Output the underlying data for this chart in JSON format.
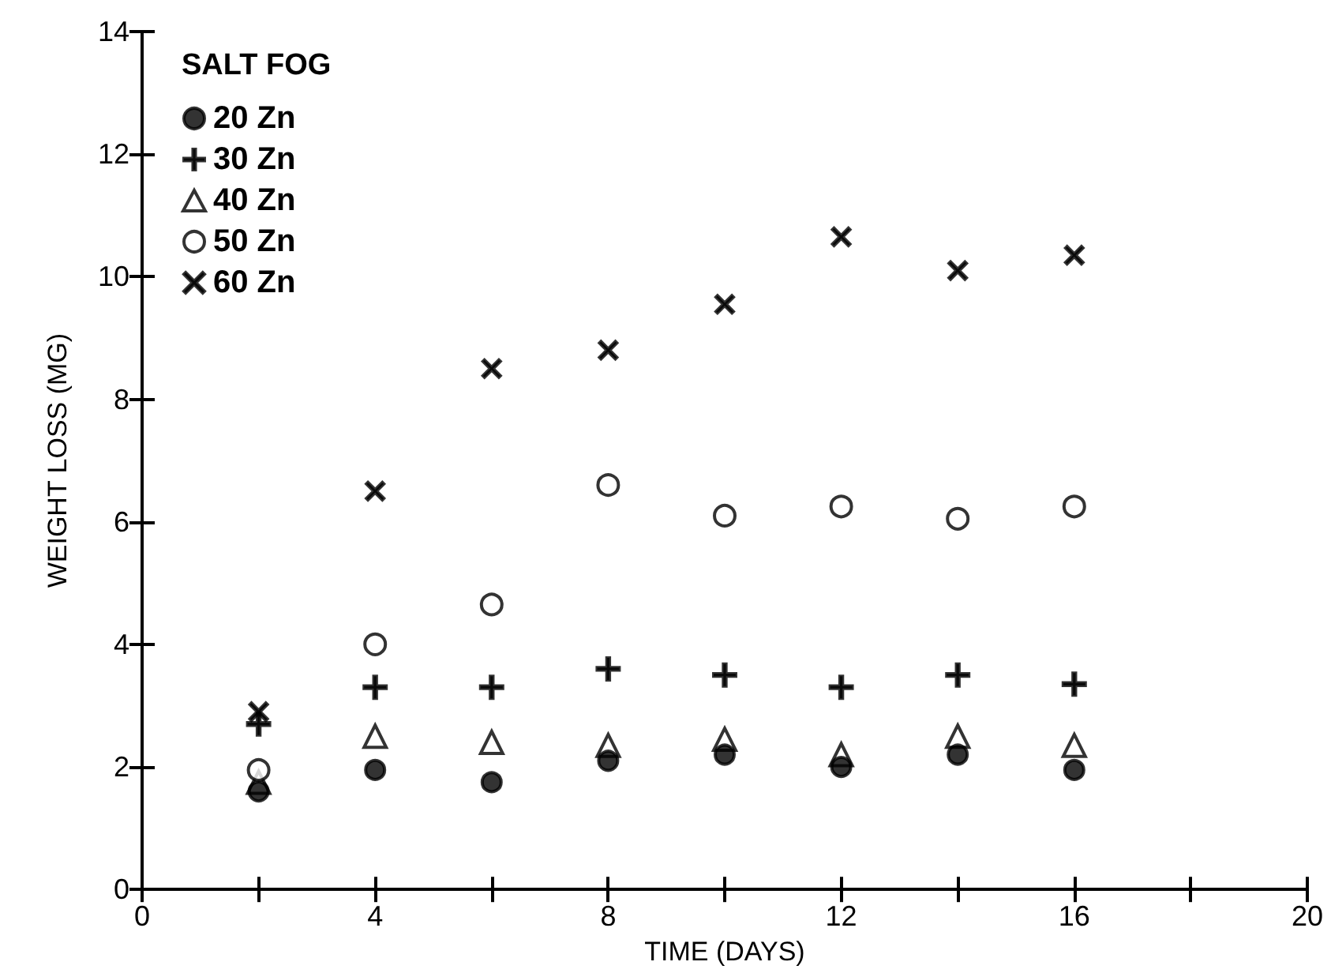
{
  "chart_data": {
    "type": "scatter",
    "xlabel": "TIME (DAYS)",
    "ylabel": "WEIGHT LOSS (MG)",
    "legend_title": "SALT FOG",
    "legend": "top left",
    "grid": false,
    "x": [
      2,
      4,
      6,
      8,
      10,
      12,
      14,
      16
    ],
    "xlim": [
      0,
      20
    ],
    "xticks": [
      0,
      {
        "value": 2,
        "label": null
      },
      4,
      {
        "value": 6,
        "label": null
      },
      8,
      {
        "value": 10,
        "label": null
      },
      12,
      {
        "value": 14,
        "label": null
      },
      16,
      {
        "value": 18,
        "label": null
      },
      20
    ],
    "ylim": [
      0,
      14
    ],
    "yticks": [
      0,
      2,
      4,
      6,
      8,
      10,
      12,
      14
    ],
    "series": [
      {
        "name": "20 Zn",
        "color": "#000000",
        "marker": "circle",
        "values": [
          1.6,
          1.95,
          1.75,
          2.1,
          2.2,
          2.0,
          2.2,
          1.95
        ]
      },
      {
        "name": "30 Zn",
        "color": "#000000",
        "marker": "plus",
        "values": [
          2.7,
          3.3,
          3.3,
          3.6,
          3.5,
          3.3,
          3.5,
          3.35
        ]
      },
      {
        "name": "40 Zn",
        "color": "#000000",
        "marker": "triangle",
        "values": [
          1.75,
          2.5,
          2.4,
          2.35,
          2.45,
          2.2,
          2.5,
          2.35
        ]
      },
      {
        "name": "50 Zn",
        "color": "#000000",
        "marker": "circle",
        "values": [
          1.95,
          4.0,
          4.65,
          6.6,
          6.1,
          6.25,
          6.05,
          6.25
        ]
      },
      {
        "name": "60 Zn",
        "color": "#000000",
        "marker": "cross",
        "values": [
          2.9,
          6.5,
          8.5,
          8.8,
          9.55,
          10.65,
          10.1,
          10.35
        ]
      }
    ]
  }
}
